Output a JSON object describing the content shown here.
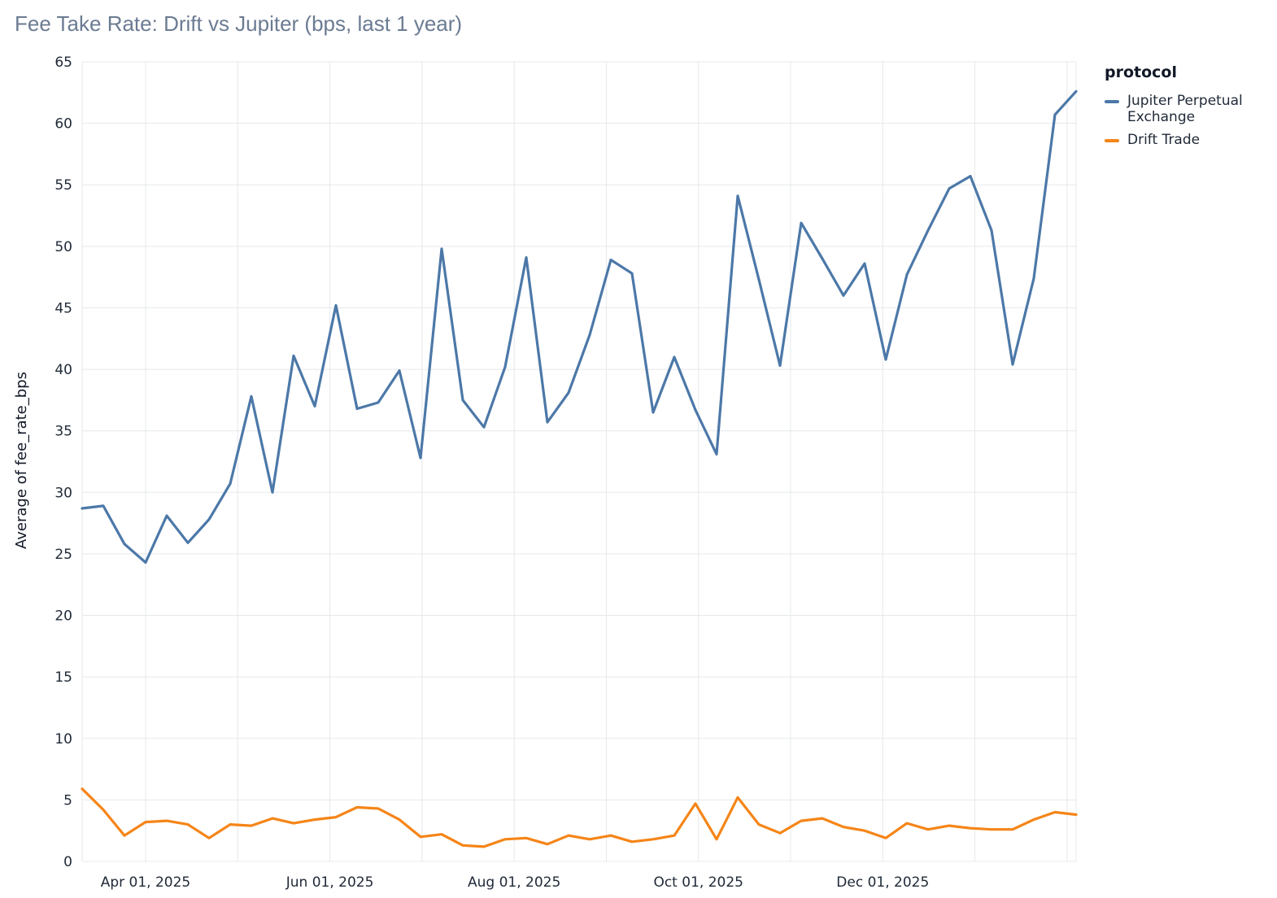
{
  "chart_data": {
    "type": "line",
    "title": "Fee Take Rate: Drift vs Jupiter (bps, last 1 year)",
    "xlabel": "",
    "ylabel": "Average of fee_rate_bps",
    "ylim": [
      0,
      65
    ],
    "yticks": [
      0,
      5,
      10,
      15,
      20,
      25,
      30,
      35,
      40,
      45,
      50,
      55,
      60,
      65
    ],
    "grid": true,
    "x_ticks": [
      "Apr 01, 2025",
      "Jun 01, 2025",
      "Aug 01, 2025",
      "Oct 01, 2025",
      "Dec 01, 2025"
    ],
    "x_tick_day_offsets": [
      21,
      82,
      143,
      204,
      265
    ],
    "x_range_days": [
      0,
      329
    ],
    "x_step_days": 7,
    "legend": {
      "title": "protocol",
      "position": "right"
    },
    "series": [
      {
        "name": "Jupiter Perpetual Exchange",
        "color": "#4c78a8",
        "values": [
          28.7,
          28.9,
          25.8,
          24.3,
          28.1,
          25.9,
          27.8,
          30.7,
          37.8,
          30.0,
          41.1,
          37.0,
          45.2,
          36.8,
          37.3,
          39.9,
          32.8,
          49.8,
          37.5,
          35.3,
          40.2,
          49.1,
          35.7,
          38.1,
          42.8,
          48.9,
          47.8,
          36.5,
          41.0,
          36.7,
          33.1,
          54.1,
          47.3,
          40.3,
          51.9,
          49.0,
          46.0,
          48.6,
          40.8,
          47.7,
          51.3,
          54.7,
          55.7,
          51.3,
          40.4,
          47.4,
          60.7,
          62.6
        ]
      },
      {
        "name": "Drift Trade",
        "color": "#f58518",
        "values": [
          5.9,
          4.2,
          2.1,
          3.2,
          3.3,
          3.0,
          1.9,
          3.0,
          2.9,
          3.5,
          3.1,
          3.4,
          3.6,
          4.4,
          4.3,
          3.4,
          2.0,
          2.2,
          1.3,
          1.2,
          1.8,
          1.9,
          1.4,
          2.1,
          1.8,
          2.1,
          1.6,
          1.8,
          2.1,
          4.7,
          1.8,
          5.2,
          3.0,
          2.3,
          3.3,
          3.5,
          2.8,
          2.5,
          1.9,
          3.1,
          2.6,
          2.9,
          2.7,
          2.6,
          2.6,
          3.4,
          4.0,
          3.8
        ]
      }
    ]
  }
}
